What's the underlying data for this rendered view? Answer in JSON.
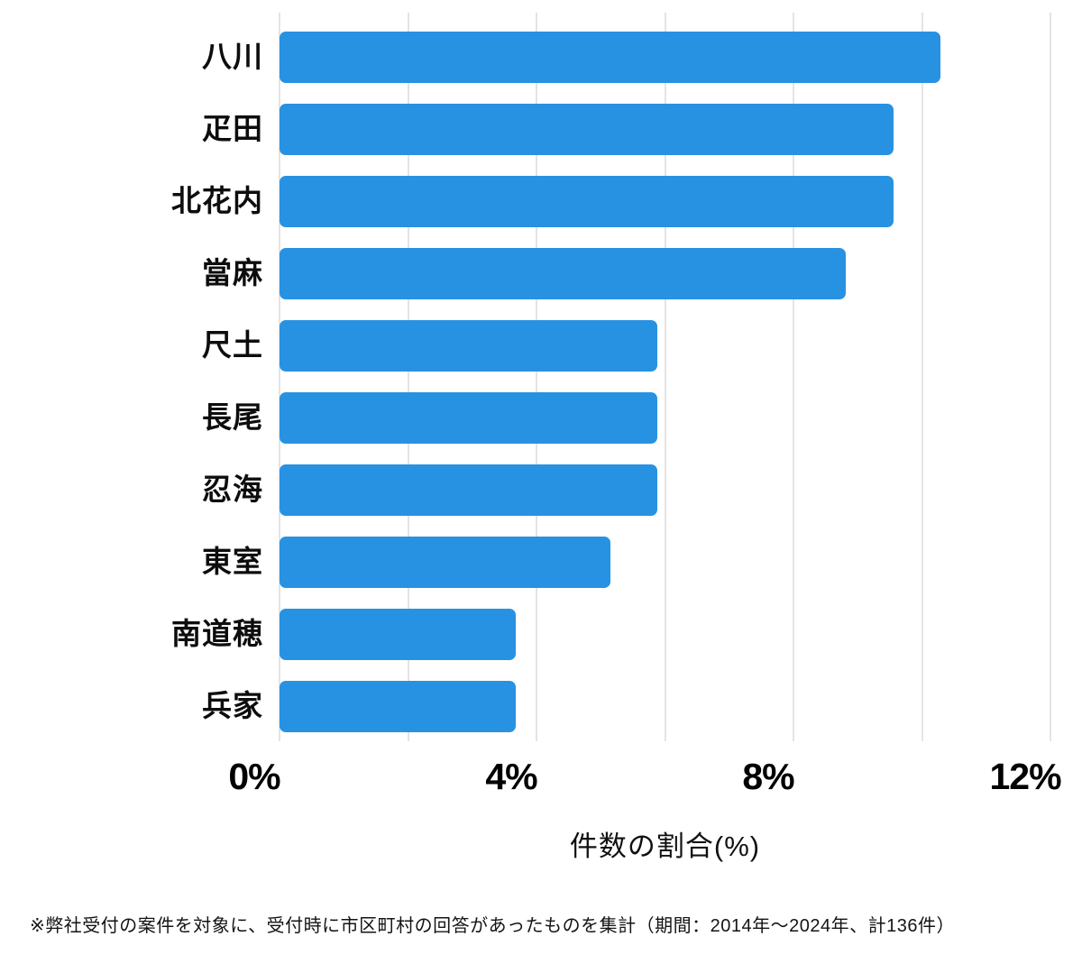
{
  "chart_data": {
    "type": "bar",
    "orientation": "horizontal",
    "categories": [
      "八川",
      "疋田",
      "北花内",
      "當麻",
      "尺土",
      "長尾",
      "忍海",
      "東室",
      "南道穂",
      "兵家"
    ],
    "values": [
      10.29,
      9.56,
      9.56,
      8.82,
      5.88,
      5.88,
      5.88,
      5.15,
      3.68,
      3.68
    ],
    "xlabel": "件数の割合(%)",
    "xlim": [
      0,
      12
    ],
    "xticks": [
      {
        "value": 0,
        "label": "0%"
      },
      {
        "value": 4,
        "label": "4%"
      },
      {
        "value": 8,
        "label": "8%"
      },
      {
        "value": 12,
        "label": "12%"
      }
    ],
    "gridline_step": 2,
    "grid": true,
    "legend": "none",
    "bar_color": "#2892e2",
    "gridline_color": "#e4e4e4"
  },
  "footnote": "※弊社受付の案件を対象に、受付時に市区町村の回答があったものを集計（期間：2014年～2024年、計136件）"
}
